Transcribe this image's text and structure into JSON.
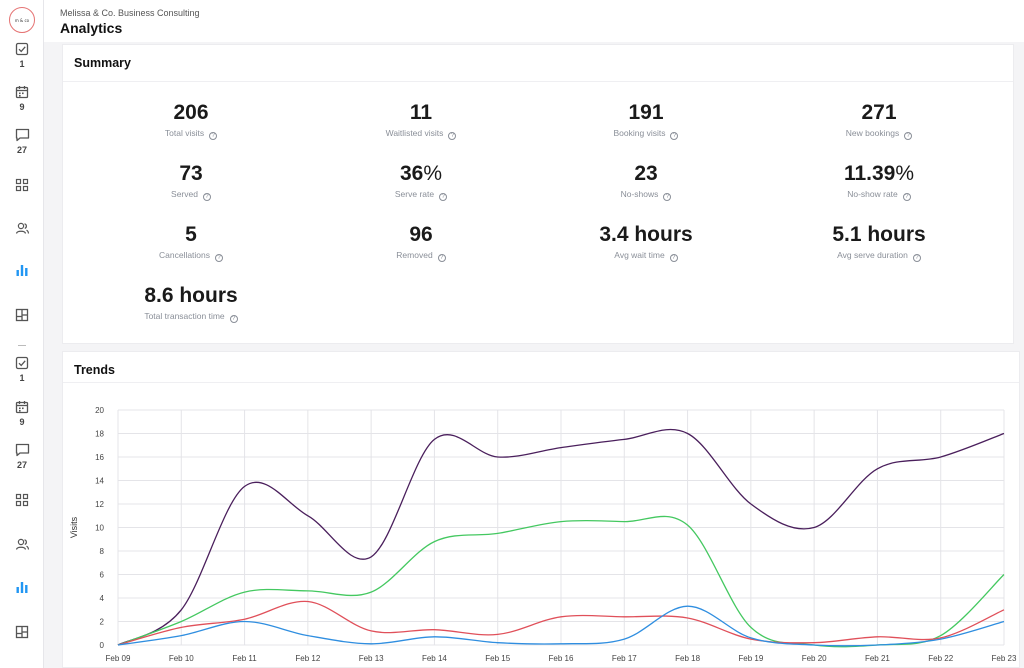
{
  "header": {
    "company": "Melissa & Co. Business Consulting",
    "title": "Analytics",
    "logo_text": "m & co"
  },
  "sidebar": {
    "items": [
      {
        "icon": "checkbox-icon",
        "count": "1"
      },
      {
        "icon": "calendar-icon",
        "count": "9"
      },
      {
        "icon": "chat-icon",
        "count": "27"
      },
      {
        "icon": "apps-grid-icon",
        "count": ""
      },
      {
        "icon": "people-icon",
        "count": ""
      },
      {
        "icon": "bar-chart-icon",
        "count": "",
        "active": true
      },
      {
        "icon": "layout-icon",
        "count": ""
      },
      {
        "icon": "checkbox-icon",
        "count": "1"
      },
      {
        "icon": "calendar-icon",
        "count": "9"
      },
      {
        "icon": "chat-icon",
        "count": "27"
      },
      {
        "icon": "apps-grid-icon",
        "count": ""
      },
      {
        "icon": "people-icon",
        "count": ""
      },
      {
        "icon": "bar-chart-icon",
        "count": "",
        "active": true
      },
      {
        "icon": "layout-icon",
        "count": ""
      }
    ],
    "active_color": "#2196f3",
    "icon_color": "#555555"
  },
  "summary": {
    "title": "Summary",
    "metrics": [
      {
        "value": "206",
        "unit": "",
        "label": "Total visits"
      },
      {
        "value": "11",
        "unit": "",
        "label": "Waitlisted visits"
      },
      {
        "value": "191",
        "unit": "",
        "label": "Booking visits"
      },
      {
        "value": "271",
        "unit": "",
        "label": "New bookings"
      },
      {
        "value": "73",
        "unit": "",
        "label": "Served"
      },
      {
        "value": "36",
        "unit": "%",
        "label": "Serve rate"
      },
      {
        "value": "23",
        "unit": "",
        "label": "No-shows"
      },
      {
        "value": "11.39",
        "unit": "%",
        "label": "No-show rate"
      },
      {
        "value": "5",
        "unit": "",
        "label": "Cancellations"
      },
      {
        "value": "96",
        "unit": "",
        "label": "Removed"
      },
      {
        "value": "3.4 hours",
        "unit": "",
        "label": "Avg wait time"
      },
      {
        "value": "5.1 hours",
        "unit": "",
        "label": "Avg serve duration"
      },
      {
        "value": "8.6 hours",
        "unit": "",
        "label": "Total transaction time"
      }
    ]
  },
  "trends": {
    "title": "Trends"
  },
  "chart_data": {
    "type": "line",
    "title": "",
    "xlabel": "",
    "ylabel": "Visits",
    "ylim": [
      0,
      20
    ],
    "yticks": [
      0,
      2,
      4,
      6,
      8,
      10,
      12,
      14,
      16,
      18,
      20
    ],
    "grid": true,
    "categories": [
      "Feb 09",
      "Feb 10",
      "Feb 11",
      "Feb 12",
      "Feb 13",
      "Feb 14",
      "Feb 15",
      "Feb 16",
      "Feb 17",
      "Feb 18",
      "Feb 19",
      "Feb 20",
      "Feb 21",
      "Feb 22",
      "Feb 23"
    ],
    "series": [
      {
        "color": "#4a1f5c",
        "values": [
          0,
          3,
          13.5,
          11,
          7.5,
          17.5,
          16,
          16.8,
          17.5,
          18,
          12,
          10,
          15,
          16,
          18
        ]
      },
      {
        "color": "#44c860",
        "values": [
          0,
          2,
          4.5,
          4.6,
          4.5,
          8.8,
          9.5,
          10.5,
          10.5,
          10.2,
          1.5,
          0,
          0,
          0.8,
          6
        ]
      },
      {
        "color": "#e0505a",
        "values": [
          0,
          1.5,
          2.2,
          3.7,
          1.2,
          1.3,
          0.9,
          2.4,
          2.4,
          2.3,
          0.5,
          0.2,
          0.7,
          0.6,
          3
        ]
      },
      {
        "color": "#2f8ee0",
        "values": [
          0,
          0.8,
          2,
          0.8,
          0.1,
          0.7,
          0.2,
          0.1,
          0.5,
          3.3,
          0.6,
          0,
          0,
          0.5,
          2
        ]
      }
    ]
  }
}
